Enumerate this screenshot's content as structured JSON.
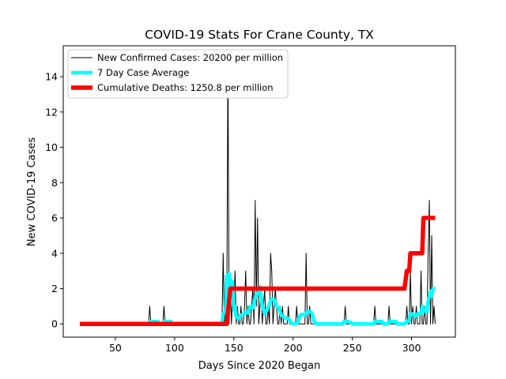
{
  "chart_data": {
    "type": "line",
    "title": "COVID-19 Stats For Crane County, TX",
    "xlabel": "Days Since 2020 Began",
    "ylabel": "New COVID-19 Cases",
    "xlim": [
      6,
      337
    ],
    "ylim": [
      -0.75,
      15.75
    ],
    "xticks": [
      50,
      100,
      150,
      200,
      250,
      300
    ],
    "yticks": [
      0,
      2,
      4,
      6,
      8,
      10,
      12,
      14
    ],
    "grid": false,
    "legend_position": "top-left",
    "series": [
      {
        "name": "New Confirmed Cases: 20200 per million",
        "color": "#000000",
        "style": "thin-line",
        "points": [
          [
            20,
            0
          ],
          [
            78,
            0
          ],
          [
            79,
            1
          ],
          [
            80,
            0
          ],
          [
            90,
            0
          ],
          [
            91,
            1
          ],
          [
            92,
            0
          ],
          [
            140,
            0
          ],
          [
            141,
            4
          ],
          [
            142,
            0
          ],
          [
            143,
            1
          ],
          [
            144,
            0
          ],
          [
            145,
            15
          ],
          [
            146,
            0
          ],
          [
            147,
            2
          ],
          [
            148,
            0
          ],
          [
            149,
            2
          ],
          [
            150,
            1
          ],
          [
            151,
            3
          ],
          [
            152,
            0
          ],
          [
            153,
            1
          ],
          [
            154,
            0
          ],
          [
            155,
            0
          ],
          [
            156,
            1
          ],
          [
            157,
            0
          ],
          [
            158,
            0
          ],
          [
            159,
            1
          ],
          [
            160,
            3
          ],
          [
            161,
            0
          ],
          [
            162,
            1
          ],
          [
            163,
            0
          ],
          [
            164,
            0
          ],
          [
            165,
            1
          ],
          [
            166,
            2
          ],
          [
            167,
            0
          ],
          [
            168,
            7
          ],
          [
            169,
            1
          ],
          [
            170,
            6
          ],
          [
            171,
            0
          ],
          [
            172,
            1
          ],
          [
            173,
            2
          ],
          [
            174,
            0
          ],
          [
            175,
            1
          ],
          [
            176,
            2
          ],
          [
            177,
            0
          ],
          [
            178,
            0
          ],
          [
            179,
            1
          ],
          [
            180,
            0
          ],
          [
            181,
            4
          ],
          [
            182,
            3
          ],
          [
            183,
            0
          ],
          [
            184,
            1
          ],
          [
            185,
            2
          ],
          [
            186,
            1
          ],
          [
            187,
            0
          ],
          [
            188,
            0
          ],
          [
            189,
            1
          ],
          [
            190,
            0
          ],
          [
            191,
            1
          ],
          [
            192,
            0
          ],
          [
            193,
            0
          ],
          [
            194,
            0
          ],
          [
            195,
            0
          ],
          [
            196,
            1
          ],
          [
            197,
            0
          ],
          [
            198,
            0
          ],
          [
            199,
            0
          ],
          [
            200,
            0
          ],
          [
            201,
            0
          ],
          [
            202,
            0
          ],
          [
            203,
            1
          ],
          [
            204,
            0
          ],
          [
            205,
            0
          ],
          [
            210,
            0
          ],
          [
            211,
            4
          ],
          [
            212,
            0
          ],
          [
            213,
            0
          ],
          [
            214,
            1
          ],
          [
            215,
            0
          ],
          [
            216,
            0
          ],
          [
            217,
            0
          ],
          [
            243,
            0
          ],
          [
            244,
            1
          ],
          [
            245,
            0
          ],
          [
            268,
            0
          ],
          [
            269,
            1
          ],
          [
            270,
            0
          ],
          [
            280,
            0
          ],
          [
            281,
            1
          ],
          [
            282,
            0
          ],
          [
            294,
            0
          ],
          [
            295,
            0
          ],
          [
            296,
            1
          ],
          [
            297,
            0
          ],
          [
            298,
            0
          ],
          [
            299,
            3
          ],
          [
            300,
            0
          ],
          [
            301,
            1
          ],
          [
            302,
            0
          ],
          [
            303,
            0
          ],
          [
            304,
            1
          ],
          [
            305,
            0
          ],
          [
            306,
            0
          ],
          [
            307,
            0
          ],
          [
            308,
            3
          ],
          [
            309,
            0
          ],
          [
            310,
            0
          ],
          [
            311,
            1
          ],
          [
            312,
            0
          ],
          [
            313,
            0
          ],
          [
            314,
            4
          ],
          [
            315,
            7
          ],
          [
            316,
            0
          ],
          [
            317,
            5
          ],
          [
            318,
            0
          ],
          [
            319,
            1
          ],
          [
            320,
            0
          ]
        ]
      },
      {
        "name": "7 Day Case Average",
        "color": "#00ffff",
        "style": "thick-line",
        "points": [
          [
            20,
            0
          ],
          [
            78,
            0
          ],
          [
            79,
            0.14
          ],
          [
            86,
            0.14
          ],
          [
            87,
            0
          ],
          [
            90,
            0
          ],
          [
            91,
            0.14
          ],
          [
            97,
            0.14
          ],
          [
            98,
            0
          ],
          [
            140,
            0
          ],
          [
            141,
            0.57
          ],
          [
            143,
            0.71
          ],
          [
            144,
            2.71
          ],
          [
            146,
            2.86
          ],
          [
            147,
            2.0
          ],
          [
            148,
            2.43
          ],
          [
            149,
            2.29
          ],
          [
            150,
            0.8
          ],
          [
            151,
            1.0
          ],
          [
            152,
            0.4
          ],
          [
            154,
            0.3
          ],
          [
            156,
            0.5
          ],
          [
            158,
            0.55
          ],
          [
            160,
            0.7
          ],
          [
            162,
            0.6
          ],
          [
            164,
            1.0
          ],
          [
            166,
            0.9
          ],
          [
            168,
            1.5
          ],
          [
            170,
            1.75
          ],
          [
            171,
            1.9
          ],
          [
            172,
            2.1
          ],
          [
            173,
            1.5
          ],
          [
            174,
            1.0
          ],
          [
            176,
            0.6
          ],
          [
            178,
            0.8
          ],
          [
            180,
            1.1
          ],
          [
            181,
            1.3
          ],
          [
            182,
            1.4
          ],
          [
            184,
            1.4
          ],
          [
            186,
            1.0
          ],
          [
            188,
            0.9
          ],
          [
            190,
            0.5
          ],
          [
            192,
            0.4
          ],
          [
            194,
            0.3
          ],
          [
            196,
            0.3
          ],
          [
            198,
            0.1
          ],
          [
            200,
            0
          ],
          [
            202,
            0
          ],
          [
            204,
            0.1
          ],
          [
            206,
            0.5
          ],
          [
            208,
            0.55
          ],
          [
            210,
            0.5
          ],
          [
            212,
            0.7
          ],
          [
            214,
            0.7
          ],
          [
            216,
            0.6
          ],
          [
            218,
            0.1
          ],
          [
            220,
            0
          ],
          [
            242,
            0
          ],
          [
            243,
            0.14
          ],
          [
            246,
            0.14
          ],
          [
            248,
            0.1
          ],
          [
            250,
            0
          ],
          [
            268,
            0
          ],
          [
            269,
            0.14
          ],
          [
            275,
            0.14
          ],
          [
            276,
            0
          ],
          [
            280,
            0
          ],
          [
            281,
            0.14
          ],
          [
            287,
            0.14
          ],
          [
            288,
            0
          ],
          [
            294,
            0
          ],
          [
            296,
            0.14
          ],
          [
            298,
            0.14
          ],
          [
            299,
            0.57
          ],
          [
            301,
            0.57
          ],
          [
            303,
            0.4
          ],
          [
            305,
            0.57
          ],
          [
            307,
            0.57
          ],
          [
            308,
            0.57
          ],
          [
            309,
            1.0
          ],
          [
            311,
            0.71
          ],
          [
            313,
            0.71
          ],
          [
            314,
            1.29
          ],
          [
            316,
            1.86
          ],
          [
            317,
            1.57
          ],
          [
            318,
            2.0
          ],
          [
            320,
            2.0
          ]
        ]
      },
      {
        "name": "Cumulative Deaths: 1250.8 per million",
        "color": "#ff0000",
        "style": "extra-thick-line",
        "points": [
          [
            20,
            0
          ],
          [
            144,
            0
          ],
          [
            147,
            2
          ],
          [
            150,
            2
          ],
          [
            294,
            2
          ],
          [
            296,
            3
          ],
          [
            298,
            3
          ],
          [
            299,
            4
          ],
          [
            309,
            4
          ],
          [
            310,
            6
          ],
          [
            320,
            6
          ]
        ]
      }
    ]
  }
}
